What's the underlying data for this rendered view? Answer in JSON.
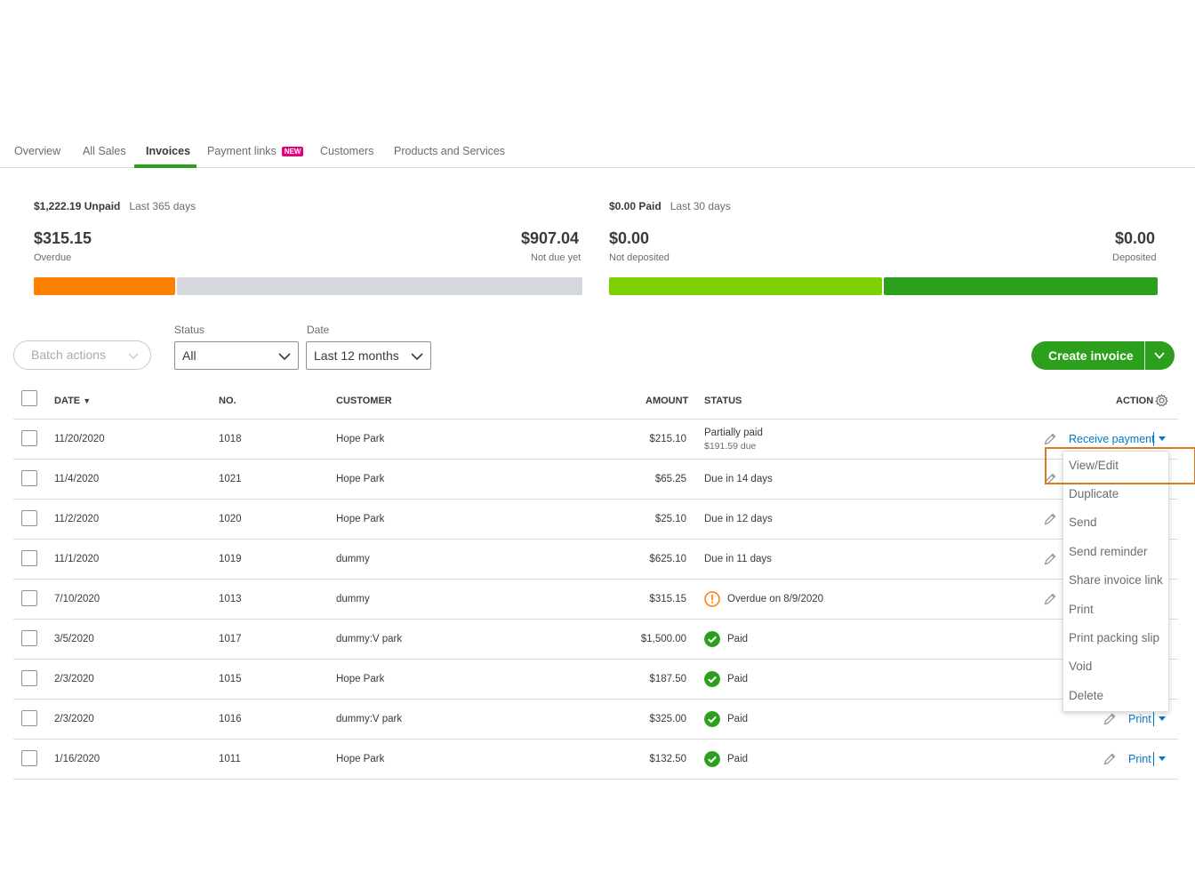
{
  "tabs": [
    {
      "label": "Overview"
    },
    {
      "label": "All Sales"
    },
    {
      "label": "Invoices"
    },
    {
      "label": "Payment links",
      "badge": "NEW"
    },
    {
      "label": "Customers"
    },
    {
      "label": "Products and Services"
    }
  ],
  "active_tab": "Invoices",
  "unpaid": {
    "title": "$1,222.19 Unpaid",
    "period": "Last 365 days",
    "overdue_amount": "$315.15",
    "overdue_label": "Overdue",
    "not_due_amount": "$907.04",
    "not_due_label": "Not due yet",
    "overdue_fraction": 0.258,
    "overdue_color": "#ff8000",
    "not_due_color": "#d4d7dc"
  },
  "paid": {
    "title": "$0.00 Paid",
    "period": "Last 30 days",
    "not_deposited_amount": "$0.00",
    "not_deposited_label": "Not deposited",
    "deposited_amount": "$0.00",
    "deposited_label": "Deposited",
    "not_deposited_color": "#7fd000",
    "deposited_color": "#2ca01c"
  },
  "filters": {
    "batch_actions": "Batch actions",
    "status_label": "Status",
    "status_value": "All",
    "date_label": "Date",
    "date_value": "Last 12 months"
  },
  "create_invoice": "Create invoice",
  "table": {
    "headers": {
      "date": "DATE",
      "sort_indicator": "▼",
      "no": "NO.",
      "customer": "CUSTOMER",
      "amount": "AMOUNT",
      "status": "STATUS",
      "action": "ACTION"
    },
    "rows": [
      {
        "date": "11/20/2020",
        "no": "1018",
        "customer": "Hope Park",
        "amount": "$215.10",
        "status": "Partially paid",
        "status_sub": "$191.59 due",
        "status_icon": "",
        "action": "Receive payment"
      },
      {
        "date": "11/4/2020",
        "no": "1021",
        "customer": "Hope Park",
        "amount": "$65.25",
        "status": "Due in 14 days",
        "status_sub": "",
        "status_icon": "",
        "action": ""
      },
      {
        "date": "11/2/2020",
        "no": "1020",
        "customer": "Hope Park",
        "amount": "$25.10",
        "status": "Due in 12 days",
        "status_sub": "",
        "status_icon": "",
        "action": ""
      },
      {
        "date": "11/1/2020",
        "no": "1019",
        "customer": "dummy",
        "amount": "$625.10",
        "status": "Due in 11 days",
        "status_sub": "",
        "status_icon": "",
        "action": ""
      },
      {
        "date": "7/10/2020",
        "no": "1013",
        "customer": "dummy",
        "amount": "$315.15",
        "status": "Overdue on 8/9/2020",
        "status_sub": "",
        "status_icon": "warning-icon",
        "action": ""
      },
      {
        "date": "3/5/2020",
        "no": "1017",
        "customer": "dummy:V park",
        "amount": "$1,500.00",
        "status": "Paid",
        "status_sub": "",
        "status_icon": "check-icon",
        "action": ""
      },
      {
        "date": "2/3/2020",
        "no": "1015",
        "customer": "Hope Park",
        "amount": "$187.50",
        "status": "Paid",
        "status_sub": "",
        "status_icon": "check-icon",
        "action": ""
      },
      {
        "date": "2/3/2020",
        "no": "1016",
        "customer": "dummy:V park",
        "amount": "$325.00",
        "status": "Paid",
        "status_sub": "",
        "status_icon": "check-icon",
        "action": "Print"
      },
      {
        "date": "1/16/2020",
        "no": "1011",
        "customer": "Hope Park",
        "amount": "$132.50",
        "status": "Paid",
        "status_sub": "",
        "status_icon": "check-icon",
        "action": "Print"
      }
    ]
  },
  "action_menu": {
    "items": [
      "View/Edit",
      "Duplicate",
      "Send",
      "Send reminder",
      "Share invoice link",
      "Print",
      "Print packing slip",
      "Void",
      "Delete"
    ],
    "highlighted": "View/Edit"
  },
  "colors": {
    "accent_green": "#2ca01c",
    "link_blue": "#0077c5",
    "warning_orange": "#ff8000",
    "highlight_box": "#d97a1e"
  }
}
